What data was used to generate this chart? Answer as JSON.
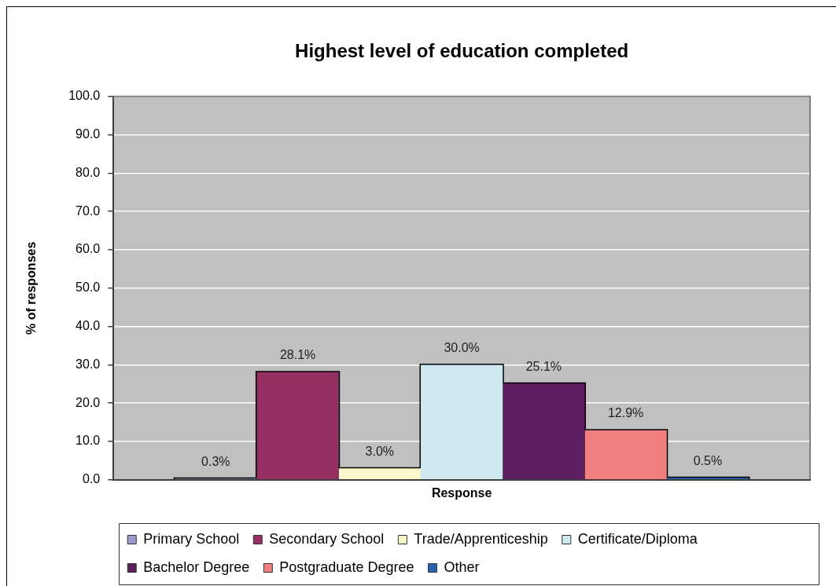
{
  "chart_data": {
    "type": "bar",
    "title": "Highest level of education completed",
    "xlabel": "Response",
    "ylabel": "% of responses",
    "categories": [
      null
    ],
    "series": [
      {
        "name": "Primary School",
        "color": "#9999cc",
        "values": [
          0.3
        ],
        "value_labels": [
          "0.3%"
        ]
      },
      {
        "name": "Secondary School",
        "color": "#953062",
        "values": [
          28.1
        ],
        "value_labels": [
          "28.1%"
        ]
      },
      {
        "name": "Trade/Apprenticeship",
        "color": "#fbf8cc",
        "values": [
          3.0
        ],
        "value_labels": [
          "3.0%"
        ]
      },
      {
        "name": "Certificate/Diploma",
        "color": "#cde9ef",
        "values": [
          30.0
        ],
        "value_labels": [
          "30.0%"
        ]
      },
      {
        "name": "Bachelor Degree",
        "color": "#5e1d5e",
        "values": [
          25.1
        ],
        "value_labels": [
          "25.1%"
        ]
      },
      {
        "name": "Postgraduate Degree",
        "color": "#f27f7f",
        "values": [
          12.9
        ],
        "value_labels": [
          "12.9%"
        ]
      },
      {
        "name": "Other",
        "color": "#2a62b2",
        "values": [
          0.5
        ],
        "value_labels": [
          "0.5%"
        ]
      }
    ],
    "ylim": [
      0,
      100
    ],
    "yticks": [
      {
        "value": 0,
        "label": "0.0"
      },
      {
        "value": 10,
        "label": "10.0"
      },
      {
        "value": 20,
        "label": "20.0"
      },
      {
        "value": 30,
        "label": "30.0"
      },
      {
        "value": 40,
        "label": "40.0"
      },
      {
        "value": 50,
        "label": "50.0"
      },
      {
        "value": 60,
        "label": "60.0"
      },
      {
        "value": 70,
        "label": "70.0"
      },
      {
        "value": 80,
        "label": "80.0"
      },
      {
        "value": 90,
        "label": "90.0"
      },
      {
        "value": 100,
        "label": "100.0"
      }
    ],
    "grid": "y",
    "legend": "bottom"
  }
}
